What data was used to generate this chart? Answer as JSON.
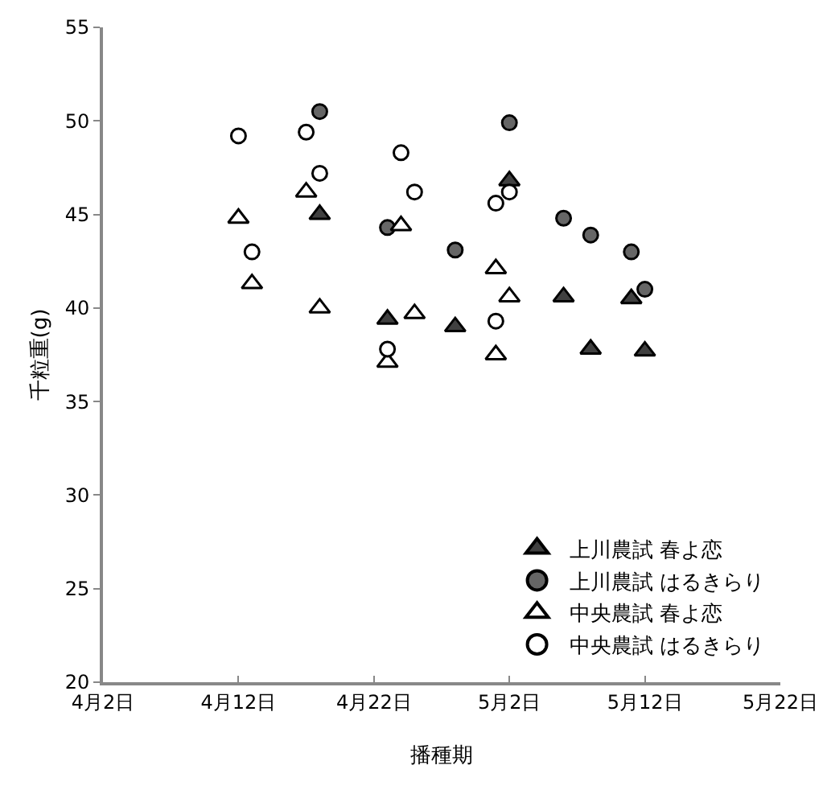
{
  "chart_data": {
    "type": "scatter",
    "xlabel": "播種期",
    "ylabel": "千粒重(g)",
    "xlim": [
      "--04-02",
      "--05-22"
    ],
    "xticks": [
      {
        "value": "--04-02",
        "label": "4月2日"
      },
      {
        "value": "--04-12",
        "label": "4月12日"
      },
      {
        "value": "--04-22",
        "label": "4月22日"
      },
      {
        "value": "--05-02",
        "label": "5月2日"
      },
      {
        "value": "--05-12",
        "label": "5月12日"
      },
      {
        "value": "--05-22",
        "label": "5月22日"
      }
    ],
    "ylim": [
      20,
      55
    ],
    "yticks": [
      20,
      25,
      30,
      35,
      40,
      45,
      50,
      55
    ],
    "grid": false,
    "legend": "bottom right",
    "series": [
      {
        "name": "上川農試 春よ恋",
        "color": "#404040",
        "marker": "triangle",
        "x": [
          "--04-18",
          "--04-23",
          "--04-28",
          "--05-02",
          "--05-06",
          "--05-08",
          "--05-11",
          "--05-12"
        ],
        "values": [
          45.0,
          39.4,
          39.0,
          46.8,
          40.6,
          37.8,
          40.5,
          37.7
        ]
      },
      {
        "name": "上川農試 はるきらり",
        "color": "#666666",
        "marker": "circle",
        "x": [
          "--04-18",
          "--04-23",
          "--04-28",
          "--05-02",
          "--05-06",
          "--05-08",
          "--05-11",
          "--05-12"
        ],
        "values": [
          50.5,
          44.3,
          43.1,
          49.9,
          44.8,
          43.9,
          43.0,
          41.0
        ]
      },
      {
        "name": "中央農試 春よ恋",
        "color": "#ffffff",
        "marker": "triangle",
        "x": [
          "--04-12",
          "--04-13",
          "--04-17",
          "--04-18",
          "--04-23",
          "--04-24",
          "--04-25",
          "--05-01",
          "--05-01",
          "--05-02"
        ],
        "values": [
          44.8,
          41.3,
          46.2,
          40.0,
          37.1,
          44.4,
          39.7,
          42.1,
          37.5,
          40.6
        ]
      },
      {
        "name": "中央農試 はるきらり",
        "color": "#ffffff",
        "marker": "circle",
        "x": [
          "--04-12",
          "--04-13",
          "--04-17",
          "--04-18",
          "--04-23",
          "--04-24",
          "--04-25",
          "--05-01",
          "--05-01",
          "--05-02"
        ],
        "values": [
          49.2,
          43.0,
          49.4,
          47.2,
          37.8,
          48.3,
          46.2,
          45.6,
          39.3,
          46.2
        ]
      }
    ]
  }
}
